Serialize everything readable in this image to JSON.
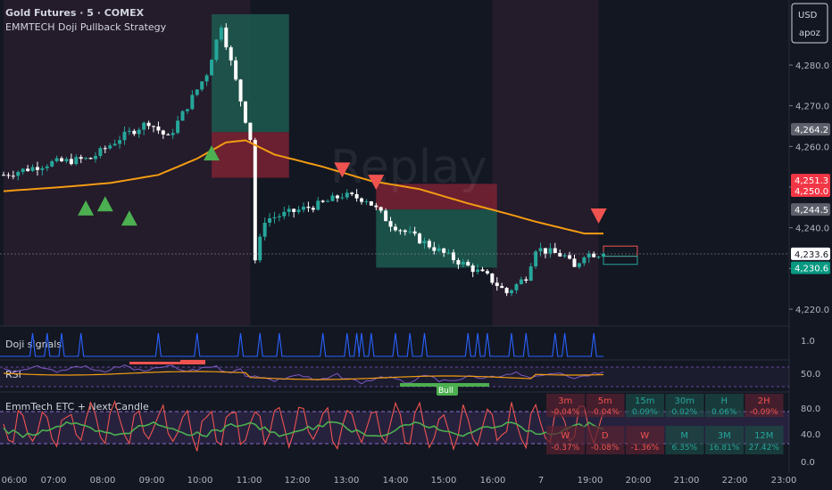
{
  "header": {
    "symbol": "Gold Futures · 5 · COMEX",
    "strategy": "EMMTECH Doji Pullback Strategy",
    "currency": "USD",
    "scale_mode": "apoz",
    "watermark": "Replay"
  },
  "colors": {
    "bg": "#131722",
    "bull": "#26a69a",
    "bear": "#ffffff",
    "ema": "#f39c12",
    "buy_marker": "#4caf50",
    "sell_marker": "#ef5350",
    "tp_zone": "#1d5a4f",
    "sl_zone": "#7a2233",
    "doji_line": "#2962ff",
    "rsi_line": "#7e57c2",
    "rsi_ma": "#f39c12",
    "stoch_red": "#ef5350",
    "stoch_green": "#4caf50"
  },
  "chart_data": [
    {
      "type": "candlestick",
      "title": "Gold Futures · 5 · COMEX",
      "xlabel": "",
      "ylabel": "",
      "x_ticks": [
        "06:00",
        "07:00",
        "08:00",
        "09:00",
        "10:00",
        "11:00",
        "12:00",
        "13:00",
        "14:00",
        "15:00",
        "16:00",
        "7",
        "19:00",
        "20:00",
        "21:00",
        "22:00",
        "23:00"
      ],
      "y_ticks": [
        4220.0,
        4230.0,
        4240.0,
        4250.0,
        4260.0,
        4270.0,
        4280.0
      ],
      "ylim": [
        4216.5,
        4295.0
      ],
      "price_labels": [
        {
          "value": 4264.2,
          "text": "4,264.2",
          "style": "gray"
        },
        {
          "value": 4251.3,
          "text": "4,251.3",
          "style": "red"
        },
        {
          "value": 4250.0,
          "text": "4,250.0",
          "style": "red"
        },
        {
          "value": 4244.5,
          "text": "4,244.5",
          "style": "gray"
        },
        {
          "value": 4233.6,
          "text": "4,233.6",
          "style": "white"
        },
        {
          "value": 4230.6,
          "text": "4,230.6",
          "style": "green"
        }
      ],
      "ema_anchors": [
        [
          0,
          4249.0
        ],
        [
          12,
          4250.0
        ],
        [
          22,
          4251.0
        ],
        [
          32,
          4253.0
        ],
        [
          40,
          4257.0
        ],
        [
          46,
          4261.0
        ],
        [
          50,
          4261.5
        ],
        [
          56,
          4258.0
        ],
        [
          66,
          4255.0
        ],
        [
          76,
          4251.5
        ],
        [
          86,
          4249.5
        ],
        [
          96,
          4246.0
        ],
        [
          104,
          4243.5
        ],
        [
          110,
          4241.5
        ],
        [
          120,
          4238.6
        ]
      ],
      "price_path": [
        [
          0,
          4253.0
        ],
        [
          10,
          4256.0
        ],
        [
          18,
          4257.0
        ],
        [
          24,
          4262.0
        ],
        [
          30,
          4266.0
        ],
        [
          34,
          4262.0
        ],
        [
          38,
          4270.0
        ],
        [
          42,
          4278.0
        ],
        [
          45,
          4290.0
        ],
        [
          48,
          4276.0
        ],
        [
          51,
          4262.0
        ],
        [
          52,
          4232.0
        ],
        [
          54,
          4242.0
        ],
        [
          60,
          4244.0
        ],
        [
          66,
          4246.0
        ],
        [
          70,
          4248.0
        ],
        [
          75,
          4247.0
        ],
        [
          80,
          4241.0
        ],
        [
          86,
          4237.0
        ],
        [
          92,
          4233.0
        ],
        [
          100,
          4228.0
        ],
        [
          104,
          4224.0
        ],
        [
          108,
          4228.0
        ],
        [
          110,
          4235.0
        ],
        [
          116,
          4233.0
        ],
        [
          118,
          4230.0
        ],
        [
          120,
          4233.6
        ]
      ],
      "buy_markers": [
        [
          17,
          4245.0
        ],
        [
          21,
          4246.0
        ],
        [
          26,
          4242.5
        ],
        [
          43,
          4258.5
        ]
      ],
      "sell_markers": [
        [
          70,
          4254.3
        ],
        [
          77,
          4251.3
        ],
        [
          123,
          4243.0
        ]
      ],
      "zones": [
        {
          "x0": 43,
          "x1": 59,
          "y0": 4263.5,
          "y1": 4292.5,
          "kind": "tp"
        },
        {
          "x0": 43,
          "x1": 59,
          "y0": 4252.3,
          "y1": 4263.5,
          "kind": "sl"
        },
        {
          "x0": 77,
          "x1": 102,
          "y0": 4244.5,
          "y1": 4250.8,
          "kind": "sl"
        },
        {
          "x0": 77,
          "x1": 102,
          "y0": 4230.2,
          "y1": 4244.5,
          "kind": "tp"
        },
        {
          "x0": 124,
          "x1": 131,
          "y0": 4233.0,
          "y1": 4235.5,
          "kind": "sl_small"
        },
        {
          "x0": 124,
          "x1": 131,
          "y0": 4231.0,
          "y1": 4233.0,
          "kind": "tp_small"
        }
      ],
      "session_shade": [
        {
          "x0": 0,
          "x1": 51
        },
        {
          "x0": 101,
          "x1": 123
        }
      ]
    },
    {
      "type": "line",
      "title": "Doji signals",
      "y_ticks": [
        1.0
      ],
      "spikes": [
        6,
        9,
        12,
        16,
        32,
        40,
        49,
        53,
        57,
        66,
        71,
        73,
        74,
        76,
        81,
        84,
        87,
        96,
        98,
        100,
        105,
        108,
        114,
        116,
        122
      ]
    },
    {
      "type": "line",
      "title": "RSI",
      "y_ticks": [
        50.0
      ],
      "annotations": [
        {
          "text": "Bull",
          "x": 91
        }
      ]
    },
    {
      "type": "line",
      "title": "EmmTech ETC + Next Candle",
      "y_ticks": [
        80.0,
        40.0,
        0.0
      ],
      "table": {
        "headers": [
          "3m",
          "5m",
          "15m",
          "30m",
          "H",
          "2H"
        ],
        "header_values": [
          "-0.04%",
          "-0.04%",
          "0.09%",
          "0.02%",
          "0.06%",
          "-0.09%"
        ],
        "rows": [
          "W",
          "D",
          "W",
          "M",
          "3M",
          "12M"
        ],
        "row_values": [
          "-0.37%",
          "-0.08%",
          "-1.36%",
          "6.35%",
          "16.81%",
          "27.42%"
        ]
      }
    }
  ]
}
